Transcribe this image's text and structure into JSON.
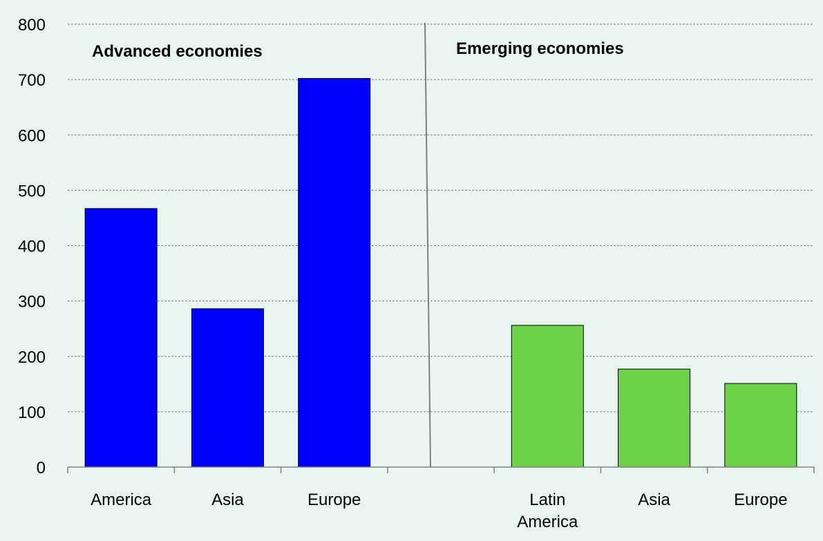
{
  "chart_data": {
    "type": "bar",
    "title": "",
    "xlabel": "",
    "ylabel": "",
    "ylim": [
      0,
      800
    ],
    "yticks": [
      0,
      100,
      200,
      300,
      400,
      500,
      600,
      700,
      800
    ],
    "grid": true,
    "groups": [
      {
        "label": "Advanced economies",
        "color": "#0000ff",
        "categories": [
          "America",
          "Asia",
          "Europe"
        ],
        "values": [
          467,
          286,
          702
        ]
      },
      {
        "label": "Emerging economies",
        "color": "#6dd346",
        "categories": [
          "Latin America",
          "Asia",
          "Europe"
        ],
        "values": [
          256,
          177,
          151
        ]
      }
    ]
  }
}
